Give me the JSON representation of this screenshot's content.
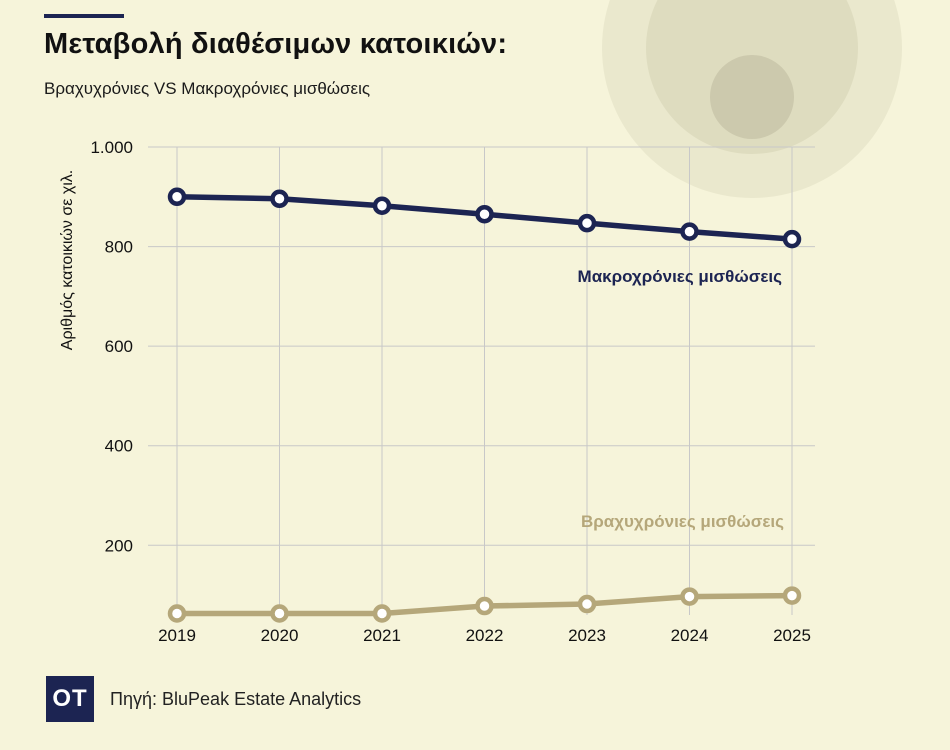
{
  "header": {
    "title": "Μεταβολή διαθέσιμων κατοικιών:",
    "subtitle": "Βραχυχρόνιες VS Μακροχρόνιες μισθώσεις"
  },
  "footer": {
    "logo": "OT",
    "source": "Πηγή: BluPeak Estate Analytics"
  },
  "colors": {
    "background": "#f6f4da",
    "long_term": "#1c2452",
    "short_term": "#b5a77a",
    "grid": "#c8c8c8"
  },
  "chart_data": {
    "type": "line",
    "title": "Μεταβολή διαθέσιμων κατοικιών:",
    "subtitle": "Βραχυχρόνιες VS Μακροχρόνιες μισθώσεις",
    "xlabel": "",
    "ylabel": "Αριθμός κατοικιών σε χιλ.",
    "x": [
      "2019",
      "2020",
      "2021",
      "2022",
      "2023",
      "2024",
      "2025"
    ],
    "ylim": [
      60,
      1000
    ],
    "yticks": [
      200,
      400,
      600,
      800,
      1000
    ],
    "ytick_labels": [
      "200",
      "400",
      "600",
      "800",
      "1.000"
    ],
    "grid": true,
    "series": [
      {
        "name": "Μακροχρόνιες μισθώσεις",
        "values": [
          900,
          896,
          882,
          865,
          847,
          830,
          815
        ]
      },
      {
        "name": "Βραχυχρόνιες μισθώσεις",
        "values": [
          63,
          63,
          63,
          78,
          82,
          97,
          99
        ]
      }
    ]
  }
}
